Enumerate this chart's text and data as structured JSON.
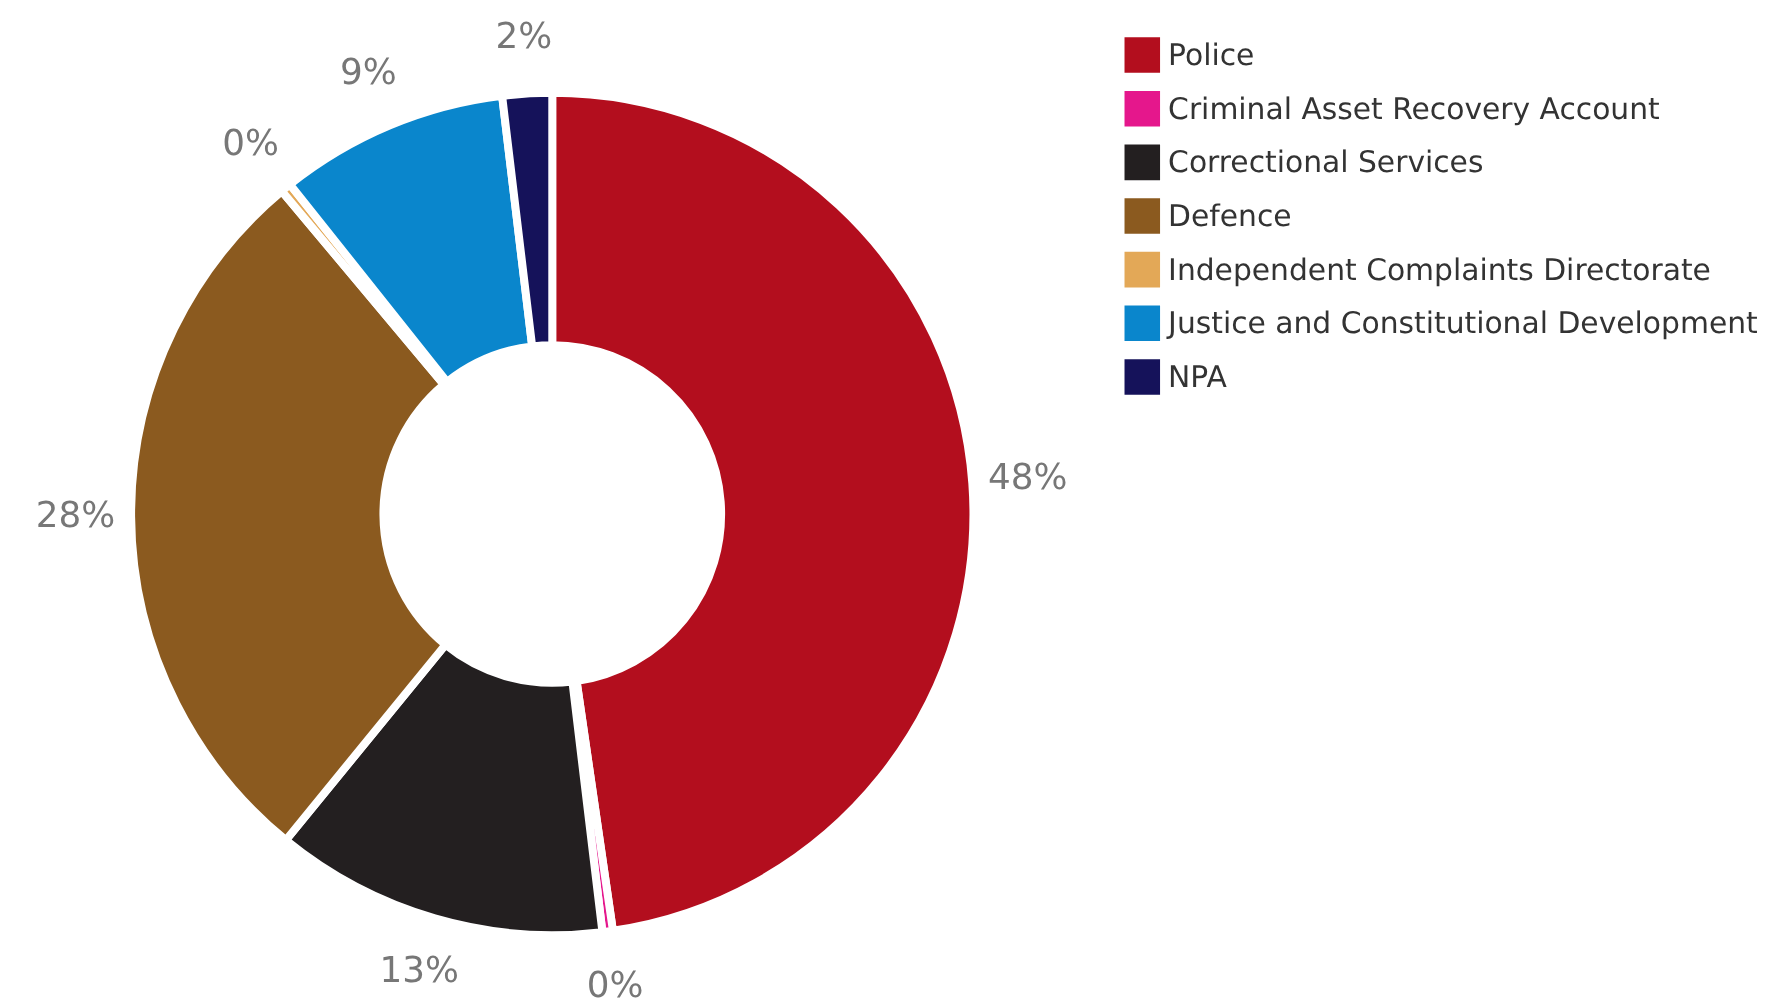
{
  "chart_data": {
    "type": "donut",
    "categories": [
      "Police",
      "Criminal Asset Recovery Account",
      "Correctional Services",
      "Defence",
      "Independent Complaints Directorate",
      "Justice and Constitutional Development",
      "NPA"
    ],
    "values": [
      47.7,
      0.4,
      12.8,
      28.0,
      0.4,
      8.8,
      1.9
    ],
    "value_labels": [
      "48%",
      "0%",
      "13%",
      "28%",
      "0%",
      "9%",
      "2%"
    ],
    "colors": [
      "#b30e1e",
      "#e5178c",
      "#231f20",
      "#8b5a1f",
      "#e3a857",
      "#0a86cc",
      "#15125a"
    ],
    "legend": "right"
  }
}
